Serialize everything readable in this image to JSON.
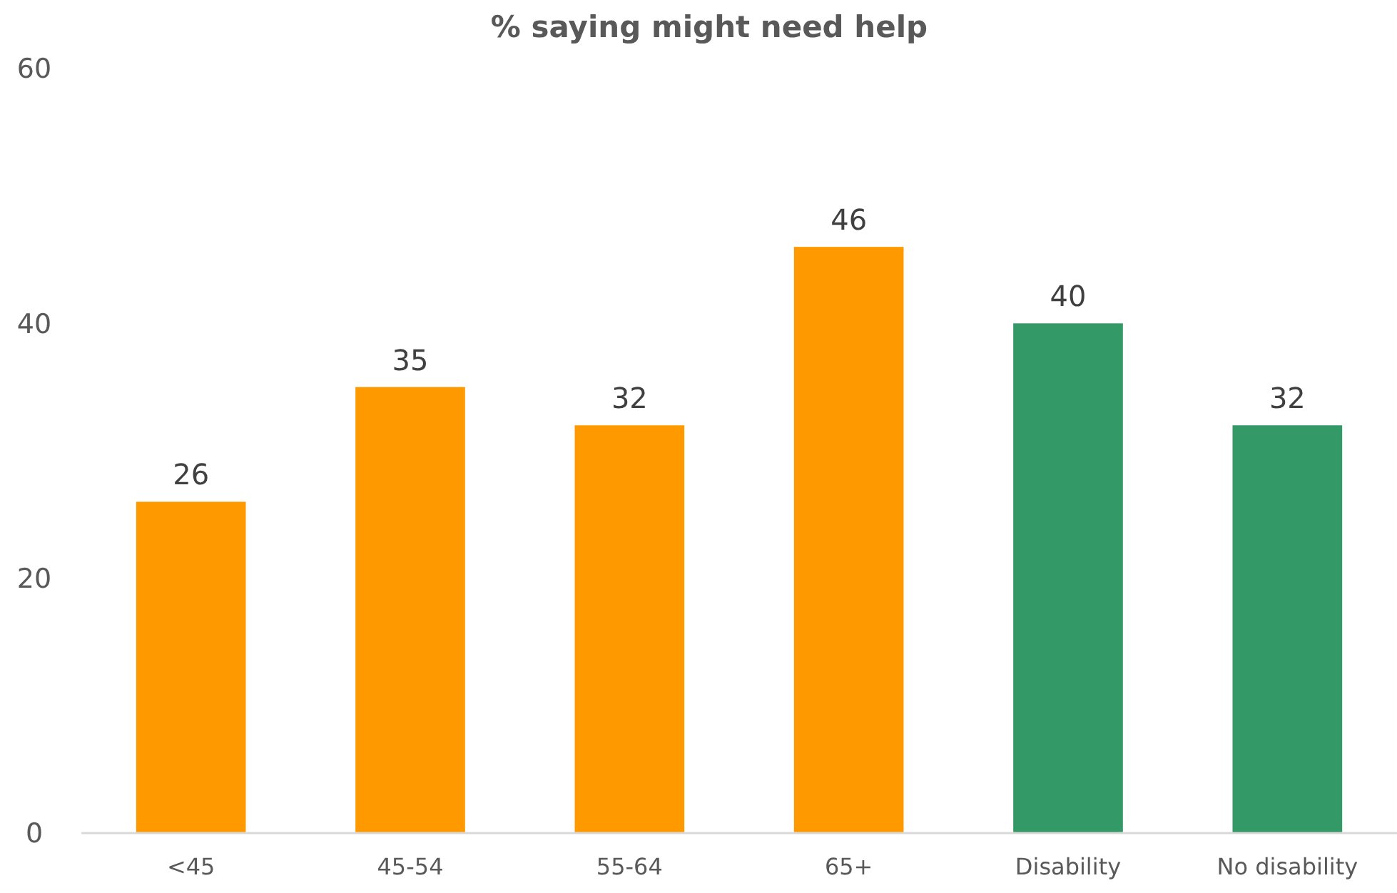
{
  "chart_data": {
    "type": "bar",
    "title": "% saying might need help",
    "categories": [
      "<45",
      "45-54",
      "55-64",
      "65+",
      "Disability",
      "No disability"
    ],
    "values": [
      26,
      35,
      32,
      46,
      40,
      32
    ],
    "colors": [
      "#ff9900",
      "#ff9900",
      "#ff9900",
      "#ff9900",
      "#339966",
      "#339966"
    ],
    "ylim": [
      0,
      60
    ],
    "yticks": [
      0,
      20,
      40,
      60
    ],
    "data_labels": true
  }
}
